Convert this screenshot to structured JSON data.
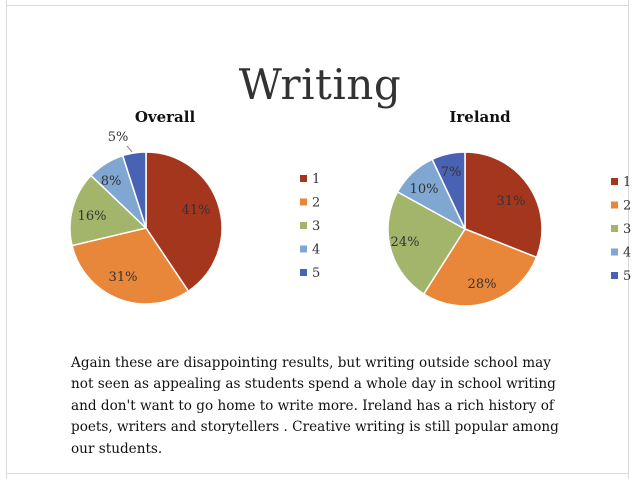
{
  "slide": {
    "title": "Writing",
    "body": "Again these are disappointing results, but writing outside school may not seen as appealing as students spend a whole day in school writing and don't want to go home to write more.  Ireland has a rich history of poets, writers and storytellers . Creative writing is still popular among our students."
  },
  "chart_data": [
    {
      "type": "pie",
      "title": "Overall",
      "categories": [
        "1",
        "2",
        "3",
        "4",
        "5"
      ],
      "values": [
        41,
        31,
        16,
        8,
        5
      ],
      "labels": [
        "41%",
        "31%",
        "16%",
        "8%",
        "5%"
      ],
      "colors": [
        "#a5361e",
        "#e8863a",
        "#a3b56a",
        "#7fa7d2",
        "#4a62b3"
      ],
      "legend": "right"
    },
    {
      "type": "pie",
      "title": "Ireland",
      "categories": [
        "1",
        "2",
        "3",
        "4",
        "5"
      ],
      "values": [
        31,
        28,
        24,
        10,
        7
      ],
      "labels": [
        "31%",
        "28%",
        "24%",
        "10%",
        "7%"
      ],
      "colors": [
        "#a5361e",
        "#e8863a",
        "#a3b56a",
        "#7fa7d2",
        "#4a62b3"
      ],
      "legend": "right"
    }
  ]
}
